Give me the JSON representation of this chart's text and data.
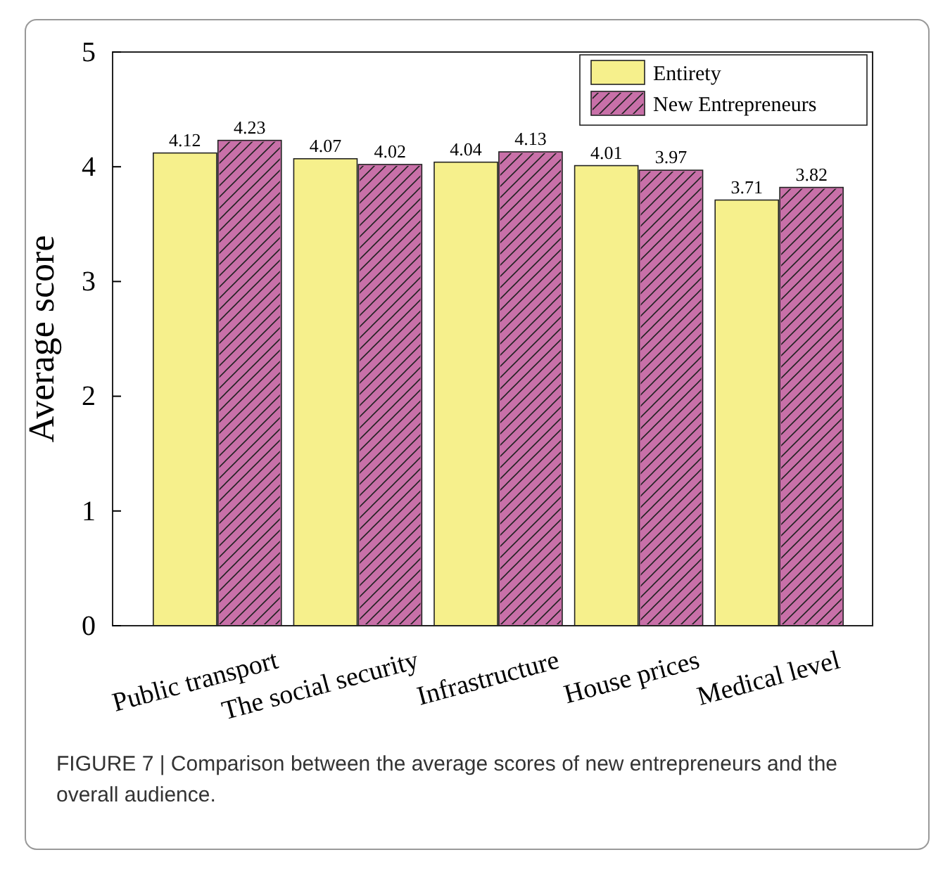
{
  "chart_data": {
    "type": "bar",
    "ylabel": "Average score",
    "categories": [
      "Public transport",
      "The social security",
      "Infrastructure",
      "House prices",
      "Medical level"
    ],
    "series": [
      {
        "name": "Entirety",
        "color": "#f6f08c",
        "values": [
          4.12,
          4.07,
          4.04,
          4.01,
          3.71
        ]
      },
      {
        "name": "New Entrepreneurs",
        "color": "#c870a8",
        "values": [
          4.23,
          4.02,
          4.13,
          3.97,
          3.82
        ]
      }
    ],
    "ylim": [
      0,
      5
    ],
    "yticks": [
      0,
      1,
      2,
      3,
      4,
      5
    ],
    "legend": "top right",
    "data_labels": true,
    "grid": false,
    "annotations": [
      "FIGURE 7 | Comparison between the average scores of new entrepreneurs and the overall audience."
    ]
  }
}
